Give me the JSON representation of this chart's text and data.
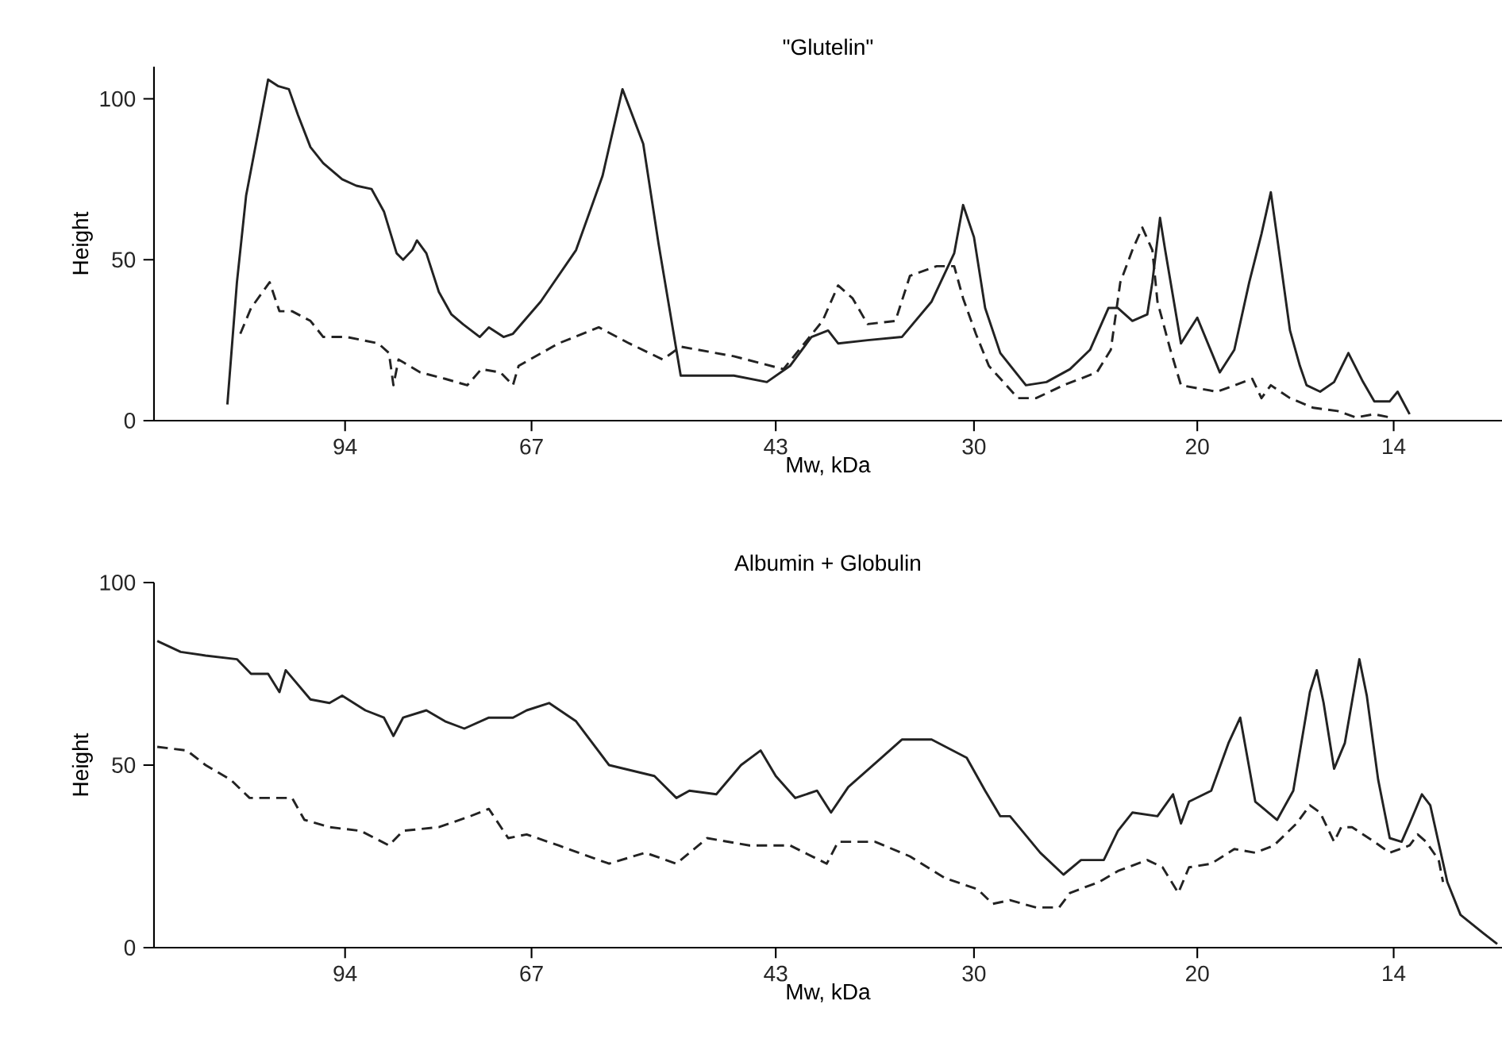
{
  "chart_data": [
    {
      "type": "line",
      "title": "\"Glutelin\"",
      "xlabel": "Mw, kDa",
      "ylabel": "Height",
      "xlim": [
        133,
        11.5
      ],
      "ylim": [
        0,
        110
      ],
      "log": "x",
      "xticks": [
        94,
        67,
        43,
        30,
        20,
        14
      ],
      "yticks": [
        0,
        50,
        100
      ],
      "marker": "none",
      "series": [
        {
          "color": "#222222",
          "line_style": "solid",
          "x": [
            116.4,
            114.4,
            112.5,
            109.9,
            108.1,
            106.2,
            104.1,
            102.4,
            100.1,
            97.8,
            94.5,
            92.1,
            89.6,
            87.6,
            85.6,
            84.6,
            83.2,
            82.5,
            81.1,
            79.3,
            77.5,
            75.9,
            73.6,
            72.4,
            70.5,
            69.3,
            65.9,
            61.8,
            58.9,
            56.8,
            54.7,
            53.2,
            51.1,
            50.3,
            46.4,
            43.7,
            41.9,
            40.3,
            39.1,
            38.4,
            36.4,
            34.2,
            32.4,
            31.1,
            30.6,
            30.0,
            29.4,
            28.6,
            27.3,
            26.3,
            25.2,
            24.3,
            23.5,
            23.1,
            22.5,
            21.9,
            21.7,
            21.4,
            21.2,
            20.6,
            20.3,
            20.0,
            19.2,
            18.7,
            18.2,
            17.8,
            17.5,
            17.3,
            16.9,
            16.6,
            16.4,
            16.0,
            15.6,
            15.2,
            14.8,
            14.5,
            14.1,
            13.9,
            13.6
          ],
          "values": [
            5,
            43,
            70,
            91,
            106,
            104,
            103,
            95,
            85,
            80,
            75,
            73,
            72,
            65,
            52,
            50,
            53,
            56,
            52,
            40,
            33,
            30,
            26,
            29,
            26,
            27,
            37,
            53,
            76,
            103,
            86,
            55,
            14,
            14,
            14,
            12,
            17,
            26,
            28,
            24,
            25,
            26,
            37,
            52,
            67,
            57,
            35,
            21,
            11,
            12,
            16,
            22,
            35,
            35,
            31,
            33,
            43,
            63,
            53,
            24,
            28,
            32,
            15,
            22,
            43,
            58,
            71,
            57,
            28,
            17,
            11,
            9,
            12,
            21,
            12,
            6,
            6,
            9,
            2
          ]
        },
        {
          "color": "#222222",
          "line_style": "dashed",
          "x": [
            113.7,
            111.5,
            107.8,
            105.9,
            103.5,
            100.1,
            97.8,
            93.7,
            88.5,
            86.8,
            86.1,
            85.3,
            82.0,
            78.4,
            75.3,
            73.4,
            70.9,
            69.3,
            68.6,
            63.8,
            59.3,
            56.1,
            52.8,
            51.1,
            46.4,
            42.4,
            39.5,
            38.4,
            37.4,
            36.4,
            34.6,
            33.7,
            32.1,
            31.1,
            30.6,
            29.9,
            29.2,
            27.7,
            26.8,
            25.5,
            24.0,
            23.4,
            23.0,
            22.5,
            22.1,
            21.7,
            21.5,
            21.0,
            20.6,
            19.3,
            18.1,
            17.8,
            17.5,
            16.9,
            16.2,
            15.5,
            15.0,
            14.5,
            14.1
          ],
          "values": [
            27,
            35,
            43,
            34,
            34,
            31,
            26,
            26,
            24,
            21,
            11,
            19,
            15,
            13,
            11,
            16,
            15,
            11,
            17,
            24,
            29,
            24,
            19,
            23,
            20,
            16,
            31,
            42,
            38,
            30,
            31,
            45,
            48,
            48,
            38,
            27,
            17,
            7,
            7,
            11,
            15,
            22,
            43,
            53,
            60,
            53,
            37,
            22,
            11,
            9,
            13,
            7,
            11,
            7,
            4,
            3,
            1,
            2,
            1
          ]
        }
      ]
    },
    {
      "type": "line",
      "title": "Albumin + Globulin",
      "xlabel": "Mw, kDa",
      "ylabel": "Height",
      "xlim": [
        133,
        11.5
      ],
      "ylim": [
        0,
        100
      ],
      "log": "x",
      "xticks": [
        94,
        67,
        43,
        30,
        20,
        14
      ],
      "yticks": [
        0,
        50,
        100
      ],
      "marker": "none",
      "series": [
        {
          "color": "#222222",
          "line_style": "solid",
          "x": [
            132.2,
            126.7,
            121.1,
            114.4,
            111.5,
            108.1,
            105.9,
            104.7,
            100.1,
            96.7,
            94.5,
            90.6,
            87.6,
            86.1,
            84.6,
            81.1,
            78.4,
            75.7,
            72.4,
            69.3,
            67.6,
            64.9,
            61.8,
            58.2,
            53.6,
            51.5,
            50.3,
            47.9,
            45.8,
            44.2,
            43.0,
            41.5,
            39.9,
            38.9,
            37.7,
            35.5,
            34.2,
            32.4,
            30.4,
            29.4,
            28.6,
            28.1,
            26.6,
            25.5,
            24.7,
            23.7,
            23.1,
            22.5,
            21.5,
            20.9,
            20.6,
            20.3,
            19.5,
            18.9,
            18.5,
            18.0,
            17.3,
            16.8,
            16.3,
            16.1,
            15.9,
            15.6,
            15.3,
            14.9,
            14.7,
            14.4,
            14.1,
            13.8,
            13.6,
            13.3,
            13.1,
            12.7,
            12.4,
            11.9,
            11.6
          ],
          "values": [
            84,
            81,
            80,
            79,
            75,
            75,
            70,
            76,
            68,
            67,
            69,
            65,
            63,
            58,
            63,
            65,
            62,
            60,
            63,
            63,
            65,
            67,
            62,
            50,
            47,
            41,
            43,
            42,
            50,
            54,
            47,
            41,
            43,
            37,
            44,
            52,
            57,
            57,
            52,
            43,
            36,
            36,
            26,
            20,
            24,
            24,
            32,
            37,
            36,
            42,
            34,
            40,
            43,
            56,
            63,
            40,
            35,
            43,
            70,
            76,
            67,
            49,
            56,
            79,
            69,
            46,
            30,
            29,
            34,
            42,
            39,
            18,
            9,
            4,
            1
          ]
        },
        {
          "color": "#222222",
          "line_style": "dashed",
          "x": [
            132.2,
            125.3,
            121.1,
            115.7,
            111.8,
            107.1,
            103.5,
            101.2,
            96.7,
            91.4,
            86.8,
            84.6,
            79.3,
            74.9,
            72.4,
            69.9,
            67.6,
            63.8,
            58.2,
            54.5,
            51.5,
            48.7,
            45.1,
            41.9,
            39.2,
            38.4,
            35.9,
            33.7,
            31.6,
            29.8,
            29.0,
            28.1,
            26.8,
            25.7,
            25.2,
            23.9,
            23.1,
            21.9,
            21.3,
            20.7,
            20.3,
            19.5,
            18.7,
            18.0,
            17.4,
            16.7,
            16.3,
            16.0,
            15.6,
            15.4,
            15.1,
            14.5,
            14.1,
            13.6,
            13.4,
            13.2,
            12.9,
            12.8
          ],
          "values": [
            55,
            54,
            50,
            46,
            41,
            41,
            41,
            35,
            33,
            32,
            28,
            32,
            33,
            36,
            38,
            30,
            31,
            28,
            23,
            26,
            23,
            30,
            28,
            28,
            23,
            29,
            29,
            25,
            19,
            16,
            12,
            13,
            11,
            11,
            15,
            18,
            21,
            24,
            22,
            15,
            22,
            23,
            27,
            26,
            28,
            34,
            39,
            37,
            29,
            33,
            33,
            29,
            26,
            28,
            31,
            29,
            24,
            18
          ]
        }
      ]
    }
  ]
}
